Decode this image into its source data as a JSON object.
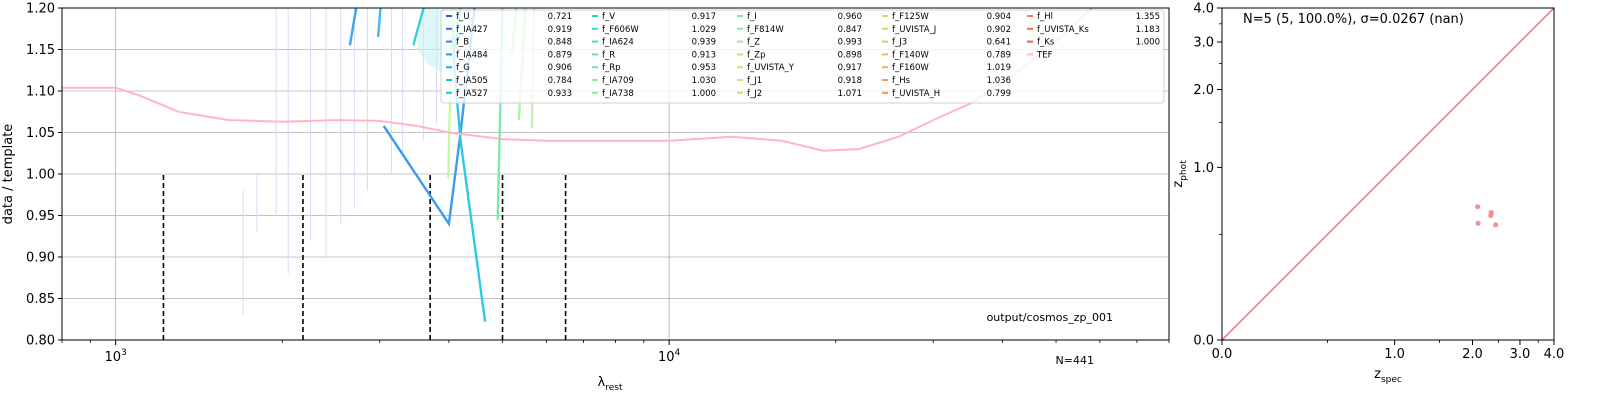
{
  "chart_data": [
    {
      "type": "line",
      "xlabel": "λ",
      "xlabel_sub": "rest",
      "ylabel": "data / template",
      "xscale": "log",
      "xlim": [
        800,
        80000
      ],
      "ylim": [
        0.8,
        1.2
      ],
      "x_ticks": [
        {
          "value": 1000,
          "base": "10",
          "exp": "3"
        },
        {
          "value": 10000,
          "base": "10",
          "exp": "4"
        }
      ],
      "y_ticks": [
        "0.80",
        "0.85",
        "0.90",
        "0.95",
        "1.00",
        "1.05",
        "1.10",
        "1.15",
        "1.20"
      ],
      "grid": true,
      "legend_placement": "top-right",
      "annotations": {
        "path": "output/cosmos_zp_001",
        "n": "N=441"
      },
      "legend": [
        {
          "name": "f_U",
          "value": "0.721",
          "color": "#3b4fe0"
        },
        {
          "name": "f_IA427",
          "value": "0.919",
          "color": "#3a6ee8"
        },
        {
          "name": "f_B",
          "value": "0.848",
          "color": "#2f86ee"
        },
        {
          "name": "f_IA484",
          "value": "0.879",
          "color": "#2a9de6"
        },
        {
          "name": "f_G",
          "value": "0.906",
          "color": "#1fb0e0"
        },
        {
          "name": "f_IA505",
          "value": "0.784",
          "color": "#17c0d8"
        },
        {
          "name": "f_IA527",
          "value": "0.933",
          "color": "#12cfcf"
        },
        {
          "name": "f_V",
          "value": "0.917",
          "color": "#1ad8c4"
        },
        {
          "name": "f_F606W",
          "value": "1.029",
          "color": "#2ee0b6"
        },
        {
          "name": "f_IA624",
          "value": "0.939",
          "color": "#44e6a8"
        },
        {
          "name": "f_R",
          "value": "0.913",
          "color": "#5eeaa0"
        },
        {
          "name": "f_Rp",
          "value": "0.953",
          "color": "#6fee98"
        },
        {
          "name": "f_IA709",
          "value": "1.030",
          "color": "#80ef90"
        },
        {
          "name": "f_IA738",
          "value": "1.000",
          "color": "#8ef088"
        },
        {
          "name": "f_I",
          "value": "0.960",
          "color": "#7fe6b0"
        },
        {
          "name": "f_F814W",
          "value": "0.847",
          "color": "#8ee8a2"
        },
        {
          "name": "f_Z",
          "value": "0.993",
          "color": "#9dea94"
        },
        {
          "name": "f_Zp",
          "value": "0.898",
          "color": "#acea88"
        },
        {
          "name": "f_UVISTA_Y",
          "value": "0.917",
          "color": "#bae87e"
        },
        {
          "name": "f_J1",
          "value": "0.918",
          "color": "#c7e476"
        },
        {
          "name": "f_J2",
          "value": "1.071",
          "color": "#cfe070"
        },
        {
          "name": "f_F125W",
          "value": "0.904",
          "color": "#d7da6a"
        },
        {
          "name": "f_UVISTA_J",
          "value": "0.902",
          "color": "#dfd266"
        },
        {
          "name": "f_J3",
          "value": "0.641",
          "color": "#e6c862"
        },
        {
          "name": "f_F140W",
          "value": "0.789",
          "color": "#ecbc5e"
        },
        {
          "name": "f_F160W",
          "value": "1.019",
          "color": "#f0ae5a"
        },
        {
          "name": "f_Hs",
          "value": "1.036",
          "color": "#f3a056"
        },
        {
          "name": "f_UVISTA_H",
          "value": "0.799",
          "color": "#f49052"
        },
        {
          "name": "f_Hl",
          "value": "1.355",
          "color": "#f4804e"
        },
        {
          "name": "f_UVISTA_Ks",
          "value": "1.183",
          "color": "#f2704a"
        },
        {
          "name": "f_Ks",
          "value": "1.000",
          "color": "#ee6046"
        },
        {
          "name": "TEF",
          "value": "",
          "color": "#ffb6c1"
        }
      ],
      "tef_curve": [
        [
          800,
          1.104
        ],
        [
          1000,
          1.104
        ],
        [
          1100,
          1.095
        ],
        [
          1300,
          1.075
        ],
        [
          1600,
          1.065
        ],
        [
          2000,
          1.063
        ],
        [
          2500,
          1.065
        ],
        [
          3000,
          1.064
        ],
        [
          3500,
          1.058
        ],
        [
          4000,
          1.05
        ],
        [
          5000,
          1.042
        ],
        [
          6000,
          1.04
        ],
        [
          8000,
          1.04
        ],
        [
          10000,
          1.04
        ],
        [
          13000,
          1.045
        ],
        [
          16000,
          1.04
        ],
        [
          19000,
          1.028
        ],
        [
          22000,
          1.03
        ],
        [
          26000,
          1.045
        ],
        [
          30000,
          1.065
        ],
        [
          35000,
          1.085
        ],
        [
          42000,
          1.12
        ],
        [
          50000,
          1.16
        ],
        [
          58000,
          1.2
        ]
      ],
      "dashed_lines": [
        {
          "x": 1220,
          "y": 1.0
        },
        {
          "x": 2180,
          "y": 1.0
        },
        {
          "x": 3700,
          "y": 1.0
        },
        {
          "x": 5000,
          "y": 1.0
        },
        {
          "x": 6500,
          "y": 1.0
        }
      ],
      "band_lines": [
        {
          "color": "#3a9cf0",
          "points": [
            [
              3050,
              1.058
            ],
            [
              4000,
              0.94
            ],
            [
              4200,
              1.05
            ],
            [
              4450,
              1.2
            ]
          ]
        },
        {
          "color": "#2fc8e8",
          "points": [
            [
              4050,
              1.2
            ],
            [
              4100,
              1.12
            ],
            [
              4200,
              1.04
            ],
            [
              4650,
              0.822
            ]
          ]
        },
        {
          "color": "#3aa8f0",
          "points": [
            [
              2650,
              1.155
            ],
            [
              2720,
              1.2
            ]
          ]
        },
        {
          "color": "#3fb8f0",
          "points": [
            [
              2980,
              1.165
            ],
            [
              3010,
              1.2
            ]
          ]
        },
        {
          "color": "#35d0d8",
          "points": [
            [
              3450,
              1.155
            ],
            [
              3600,
              1.2
            ]
          ]
        },
        {
          "color": "#7fe8a8",
          "points": [
            [
              4900,
              0.945
            ],
            [
              5000,
              1.2
            ]
          ]
        },
        {
          "color": "#9cf0a0",
          "points": [
            [
              5200,
              1.145
            ],
            [
              5300,
              1.2
            ]
          ]
        },
        {
          "color": "#a6f0b0",
          "points": [
            [
              5350,
              1.065
            ],
            [
              5500,
              1.2
            ]
          ]
        },
        {
          "color": "#c8f0b8",
          "points": [
            [
              5650,
              1.055
            ],
            [
              5700,
              1.2
            ]
          ]
        },
        {
          "color": "#c8f6a8",
          "points": [
            [
              3990,
              0.995
            ],
            [
              4050,
              1.2
            ]
          ]
        },
        {
          "color": "#52d8e0",
          "points": [
            [
              4100,
              1.15
            ],
            [
              4200,
              1.2
            ]
          ]
        }
      ]
    },
    {
      "type": "scatter",
      "title": "N=5 (5, 100.0%), σ=0.0267 (nan)",
      "xlabel": "z",
      "xlabel_sub": "spec",
      "ylabel": "z",
      "ylabel_sub": "phot",
      "xlim": [
        0.0,
        4.0
      ],
      "ylim": [
        0.0,
        4.0
      ],
      "x_ticks": [
        "0.0",
        "1.0",
        "2.0",
        "3.0",
        "4.0"
      ],
      "y_ticks": [
        "0.0",
        "1.0",
        "2.0",
        "3.0",
        "4.0"
      ],
      "grid": false,
      "points": [
        [
          2.09,
          0.68
        ],
        [
          2.1,
          0.57
        ],
        [
          2.34,
          0.62
        ],
        [
          2.35,
          0.64
        ],
        [
          2.44,
          0.56
        ]
      ],
      "one_to_one_line": true,
      "color": "#f08080"
    }
  ]
}
